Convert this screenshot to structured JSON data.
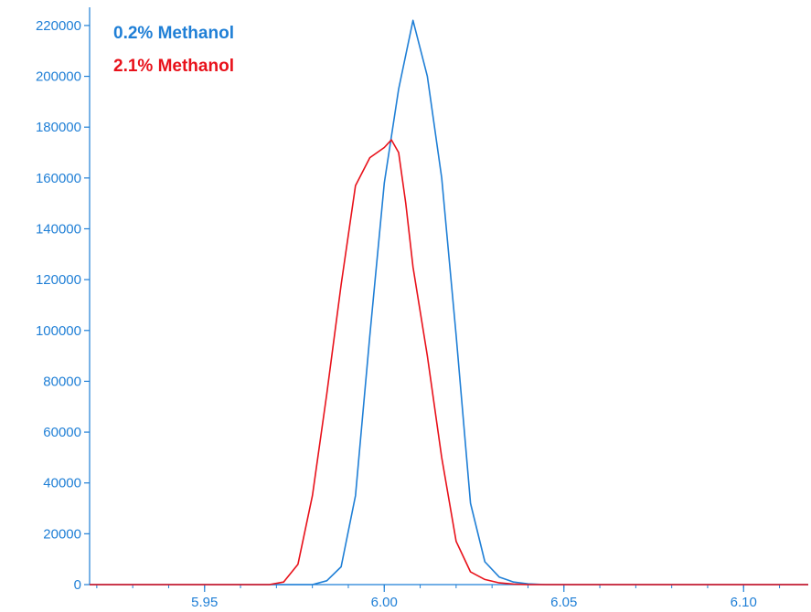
{
  "chart_data": {
    "type": "line",
    "title": "",
    "xlabel": "",
    "ylabel": "",
    "xlim": [
      5.918,
      6.118
    ],
    "ylim": [
      0,
      225000
    ],
    "x_ticks": [
      5.95,
      6.0,
      6.05,
      6.1
    ],
    "x_tick_labels": [
      "5.95",
      "6.00",
      "6.05",
      "6.10"
    ],
    "y_ticks": [
      0,
      20000,
      40000,
      60000,
      80000,
      100000,
      120000,
      140000,
      160000,
      180000,
      200000,
      220000
    ],
    "y_tick_labels": [
      "0",
      "20000",
      "40000",
      "60000",
      "80000",
      "100000",
      "120000",
      "140000",
      "160000",
      "180000",
      "200000",
      "220000"
    ],
    "grid": false,
    "legend_position": "top-left",
    "axis_color": "#1f7fd6",
    "series": [
      {
        "name": "0.2% Methanol",
        "color": "#1f7fd6",
        "x": [
          5.918,
          5.98,
          5.984,
          5.988,
          5.992,
          5.996,
          6.0,
          6.004,
          6.008,
          6.012,
          6.016,
          6.02,
          6.024,
          6.028,
          6.032,
          6.036,
          6.04,
          6.045,
          6.055,
          6.118
        ],
        "y": [
          0,
          0,
          1500,
          7000,
          35000,
          98000,
          158000,
          195000,
          222000,
          200000,
          160000,
          98000,
          32000,
          9000,
          3000,
          1000,
          300,
          0,
          0,
          0
        ]
      },
      {
        "name": "2.1% Methanol",
        "color": "#e8111a",
        "x": [
          5.918,
          5.968,
          5.972,
          5.976,
          5.98,
          5.984,
          5.988,
          5.992,
          5.996,
          6.0,
          6.002,
          6.004,
          6.006,
          6.008,
          6.012,
          6.016,
          6.02,
          6.024,
          6.028,
          6.032,
          6.036,
          6.04,
          6.118
        ],
        "y": [
          0,
          0,
          1000,
          8000,
          35000,
          75000,
          118000,
          157000,
          168000,
          172000,
          175000,
          170000,
          150000,
          125000,
          90000,
          50000,
          17000,
          5000,
          2000,
          700,
          200,
          0,
          0
        ]
      }
    ]
  }
}
